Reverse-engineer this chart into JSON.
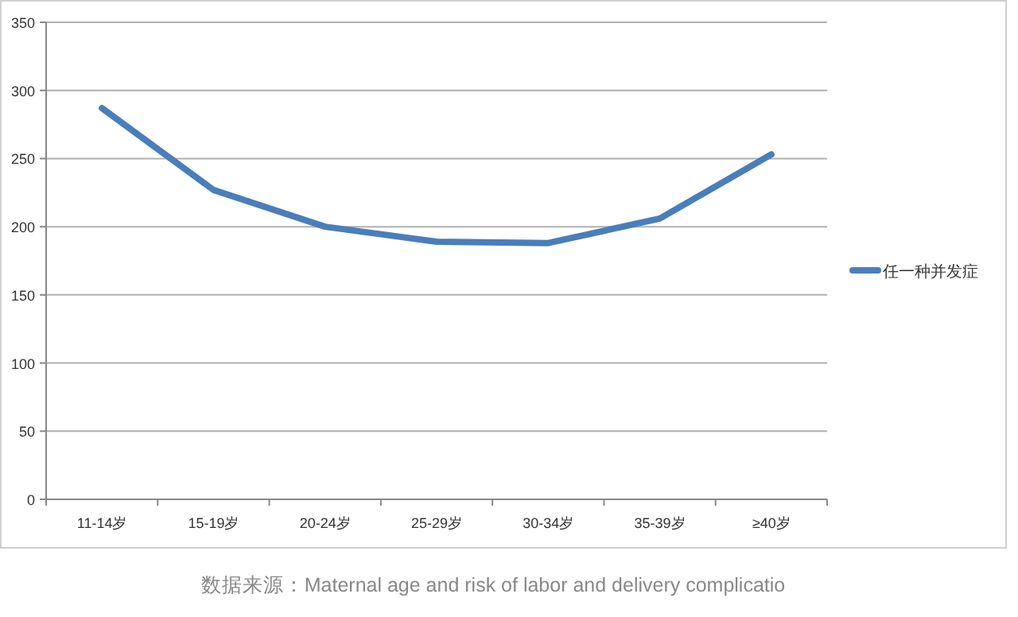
{
  "chart_data": {
    "type": "line",
    "categories": [
      "11-14岁",
      "15-19岁",
      "20-24岁",
      "25-29岁",
      "30-34岁",
      "35-39岁",
      "≥40岁"
    ],
    "series": [
      {
        "name": "任一种并发症",
        "color": "#4a7ebb",
        "values": [
          287,
          227,
          200,
          189,
          188,
          206,
          253
        ]
      }
    ],
    "ylim": [
      0,
      350
    ],
    "yticks": [
      0,
      50,
      100,
      150,
      200,
      250,
      300,
      350
    ],
    "grid": "y",
    "legend": "right",
    "marker": "none",
    "line_style": "solid",
    "annotations": [
      "数据来源：Maternal age and risk of labor and delivery complicatio"
    ]
  }
}
